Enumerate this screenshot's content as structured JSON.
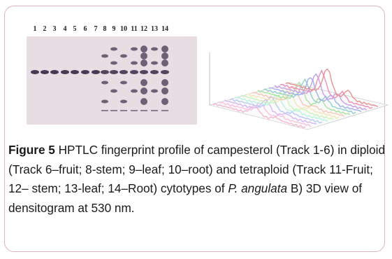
{
  "figure": {
    "tracks": [
      "1",
      "2",
      "3",
      "4",
      "5",
      "6",
      "7",
      "8",
      "9",
      "10",
      "11",
      "12",
      "13",
      "14"
    ],
    "caption": {
      "label": "Figure 5",
      "text_before_species": " HPTLC fingerprint profile of campesterol (Track 1-6) in diploid (Track 6–fruit; 8-stem; 9–leaf; 10–root) and tetraploid (Track 11-Fruit; 12– stem; 13-leaf; 14–Root) cytotypes of ",
      "species": "P. angulata",
      "text_after_species": " B) 3D view of densitogram at 530 nm."
    }
  }
}
